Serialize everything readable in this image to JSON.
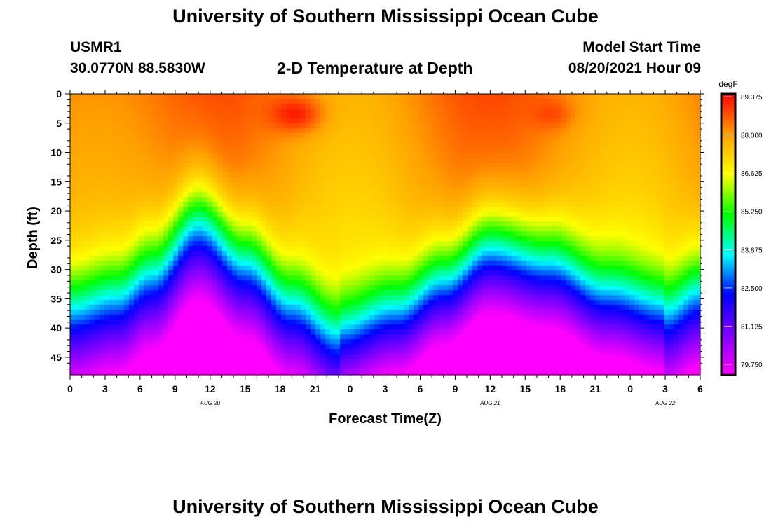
{
  "header": {
    "title": "University of Southern Mississippi Ocean Cube",
    "station_id": "USMR1",
    "coords": "30.0770N  88.5830W",
    "plot_title": "2-D Temperature at Depth",
    "model_label": "Model Start Time",
    "model_time": "08/20/2021 Hour 09"
  },
  "footer": {
    "title": "University of Southern Mississippi Ocean Cube"
  },
  "colors": {
    "scale": [
      "#ff00ff",
      "#8000ff",
      "#0000ff",
      "#00ffff",
      "#00ff00",
      "#ffff00",
      "#ffa000",
      "#ff0000"
    ]
  },
  "chart_data": {
    "type": "heatmap",
    "title": "2-D Temperature at Depth",
    "xlabel": "Forecast Time(Z)",
    "ylabel": "Depth (ft)",
    "x_ticks": [
      "0",
      "3",
      "6",
      "9",
      "12",
      "15",
      "18",
      "21",
      "0",
      "3",
      "6",
      "9",
      "12",
      "15",
      "18",
      "21",
      "0",
      "3",
      "6"
    ],
    "x_range_hours": [
      0,
      54
    ],
    "date_labels": [
      {
        "text": "AUG 20",
        "hour": 12
      },
      {
        "text": "AUG 21",
        "hour": 36
      },
      {
        "text": "AUG 22",
        "hour": 51
      }
    ],
    "y_ticks": [
      0,
      5,
      10,
      15,
      20,
      25,
      30,
      35,
      40,
      45
    ],
    "ylim": [
      0,
      48
    ],
    "colorbar": {
      "unit": "degF",
      "ticks": [
        "89.375",
        "88.000",
        "86.625",
        "85.250",
        "83.875",
        "82.500",
        "81.125",
        "79.750"
      ],
      "range": [
        79.2,
        89.8
      ]
    },
    "temperature_model": {
      "description": "Surface ~88 degF cooling with depth to ~79.5 degF near bottom; thermocline depth (ft) oscillates with forecast hour",
      "thermocline_depth_ft": [
        {
          "hour": 0,
          "depth": 37
        },
        {
          "hour": 4,
          "depth": 35
        },
        {
          "hour": 7,
          "depth": 31
        },
        {
          "hour": 11,
          "depth": 22.5
        },
        {
          "hour": 15,
          "depth": 29
        },
        {
          "hour": 19,
          "depth": 36
        },
        {
          "hour": 23,
          "depth": 41.5
        },
        {
          "hour": 28,
          "depth": 38
        },
        {
          "hour": 32,
          "depth": 33
        },
        {
          "hour": 36,
          "depth": 27.5
        },
        {
          "hour": 41,
          "depth": 30
        },
        {
          "hour": 46,
          "depth": 35
        },
        {
          "hour": 51,
          "depth": 37.5
        },
        {
          "hour": 54,
          "depth": 34
        }
      ],
      "hot_spots": [
        {
          "hour": 19.5,
          "depth": 3.5,
          "temp": 89.7,
          "spread_hours": 1.6,
          "spread_ft": 2.2
        },
        {
          "hour": 41.5,
          "depth": 3.5,
          "temp": 89.0,
          "spread_hours": 1.2,
          "spread_ft": 1.8
        }
      ]
    }
  }
}
